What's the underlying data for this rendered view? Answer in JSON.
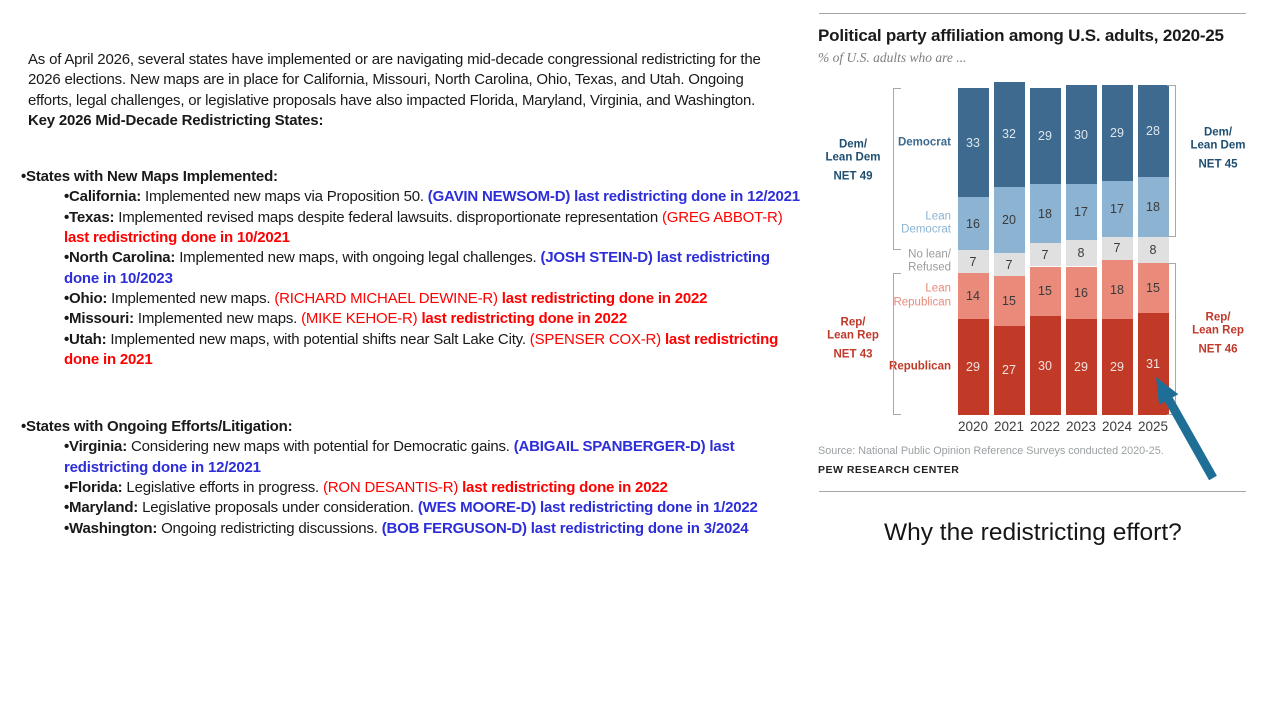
{
  "text_block": {
    "intro": "As of April 2026, several states have implemented or are navigating mid-decade congressional redistricting for the 2026 elections. New maps are in place for California, Missouri, North Carolina, Ohio, Texas, and Utah. Ongoing efforts, legal challenges, or legislative proposals have also impacted Florida, Maryland, Virginia, and Washington.",
    "intro_bold": "Key 2026 Mid-Decade Redistricting States:",
    "party_colors": {
      "D": "#2d2dd9",
      "R": "#ff0000"
    },
    "sections": [
      {
        "header": "States with New Maps Implemented:",
        "items": [
          {
            "state": "California",
            "desc": "Implemented new maps via Proposition 50.",
            "paren": "(GAVIN NEWSOM-D)",
            "tail": "last redistricting done in 12/2021",
            "party": "D"
          },
          {
            "state": "Texas",
            "desc": "Implemented revised maps despite federal lawsuits. disproportionate representation",
            "paren": "(GREG ABBOT-R)",
            "tail": "last redistricting done in 10/2021",
            "party": "R"
          },
          {
            "state": "North Carolina",
            "desc": "Implemented new maps, with ongoing legal challenges.",
            "paren": "(JOSH STEIN-D)",
            "tail": "last redistricting done in 10/2023",
            "party": "D"
          },
          {
            "state": "Ohio",
            "desc": "Implemented new maps.",
            "paren": "(RICHARD MICHAEL DEWINE-R)",
            "tail": "last redistricting done in 2022",
            "party": "R"
          },
          {
            "state": "Missouri",
            "desc": "Implemented new maps.",
            "paren": "(MIKE KEHOE-R)",
            "tail": "last redistricting done in 2022",
            "party": "R"
          },
          {
            "state": "Utah",
            "desc": "Implemented new maps, with potential shifts near Salt Lake City.",
            "paren": "(SPENSER COX-R)",
            "tail": "last redistricting done in 2021",
            "party": "R"
          }
        ]
      },
      {
        "header": "States with Ongoing Efforts/Litigation:",
        "items": [
          {
            "state": "Virginia",
            "desc": "Considering new maps with potential for Democratic gains.",
            "paren": "(ABIGAIL SPANBERGER-D)",
            "tail": "last redistricting done in 12/2021",
            "party": "D"
          },
          {
            "state": "Florida",
            "desc": "Legislative efforts in progress.",
            "paren": "(RON DESANTIS-R)",
            "tail": "last redistricting done in 2022",
            "party": "R"
          },
          {
            "state": "Maryland",
            "desc": "Legislative proposals under consideration.",
            "paren": "(WES MOORE-D)",
            "tail": "last redistricting done in 1/2022",
            "party": "D"
          },
          {
            "state": "Washington",
            "desc": "Ongoing redistricting discussions.",
            "paren": "(BOB FERGUSON-D)",
            "tail": "last redistricting done in 3/2024",
            "party": "D"
          }
        ]
      }
    ]
  },
  "question": "Why the redistricting effort?",
  "chart_data": {
    "type": "bar",
    "stacked": true,
    "title": "Political party affiliation among U.S. adults, 2020-25",
    "subtitle": "% of U.S. adults who are ...",
    "categories": [
      "2020",
      "2021",
      "2022",
      "2023",
      "2024",
      "2025"
    ],
    "series": [
      {
        "name": "Democrat",
        "label_lines": [
          "Democrat"
        ],
        "label_bold": true,
        "color": "#3D6A8E",
        "label_color": "#3D6A8E",
        "value_color": "#DCE6EE",
        "values": [
          33,
          32,
          29,
          30,
          29,
          28
        ]
      },
      {
        "name": "Lean Democrat",
        "label_lines": [
          "Lean",
          "Democrat"
        ],
        "label_bold": false,
        "color": "#8CB3D2",
        "label_color": "#8CB3D2",
        "value_color": "#3a3a3a",
        "values": [
          16,
          20,
          18,
          17,
          17,
          18
        ]
      },
      {
        "name": "No lean/Refused",
        "label_lines": [
          "No lean/",
          "Refused"
        ],
        "label_bold": false,
        "color": "#E0E0E0",
        "label_color": "#9B9B9B",
        "value_color": "#3a3a3a",
        "values": [
          7,
          7,
          7,
          8,
          7,
          8
        ]
      },
      {
        "name": "Lean Republican",
        "label_lines": [
          "Lean",
          "Republican"
        ],
        "label_bold": false,
        "color": "#E98A7B",
        "label_color": "#E98A7B",
        "value_color": "#3a3a3a",
        "values": [
          14,
          15,
          15,
          16,
          18,
          15
        ]
      },
      {
        "name": "Republican",
        "label_lines": [
          "Republican"
        ],
        "label_bold": true,
        "color": "#C13A28",
        "label_color": "#C13A28",
        "value_color": "#F3E2DE",
        "values": [
          29,
          27,
          30,
          29,
          29,
          31
        ]
      }
    ],
    "annotations": {
      "left_dem": {
        "lines": [
          "Dem/",
          "Lean Dem"
        ],
        "net": "NET 49",
        "color": "#1F4E70"
      },
      "left_rep": {
        "lines": [
          "Rep/",
          "Lean Rep"
        ],
        "net": "NET 43",
        "color": "#C0392B"
      },
      "right_dem": {
        "lines": [
          "Dem/",
          "Lean Dem"
        ],
        "net": "NET 45",
        "color": "#1F4E70"
      },
      "right_rep": {
        "lines": [
          "Rep/",
          "Lean Rep"
        ],
        "net": "NET 46",
        "color": "#C0392B"
      }
    },
    "source": "Source: National Public Opinion Reference Surveys conducted 2020-25.",
    "brand": "PEW RESEARCH CENTER",
    "arrow_color": "#1E6E96",
    "legend_position": "in-chart-labels",
    "ylim": [
      0,
      101
    ],
    "grid": false
  }
}
